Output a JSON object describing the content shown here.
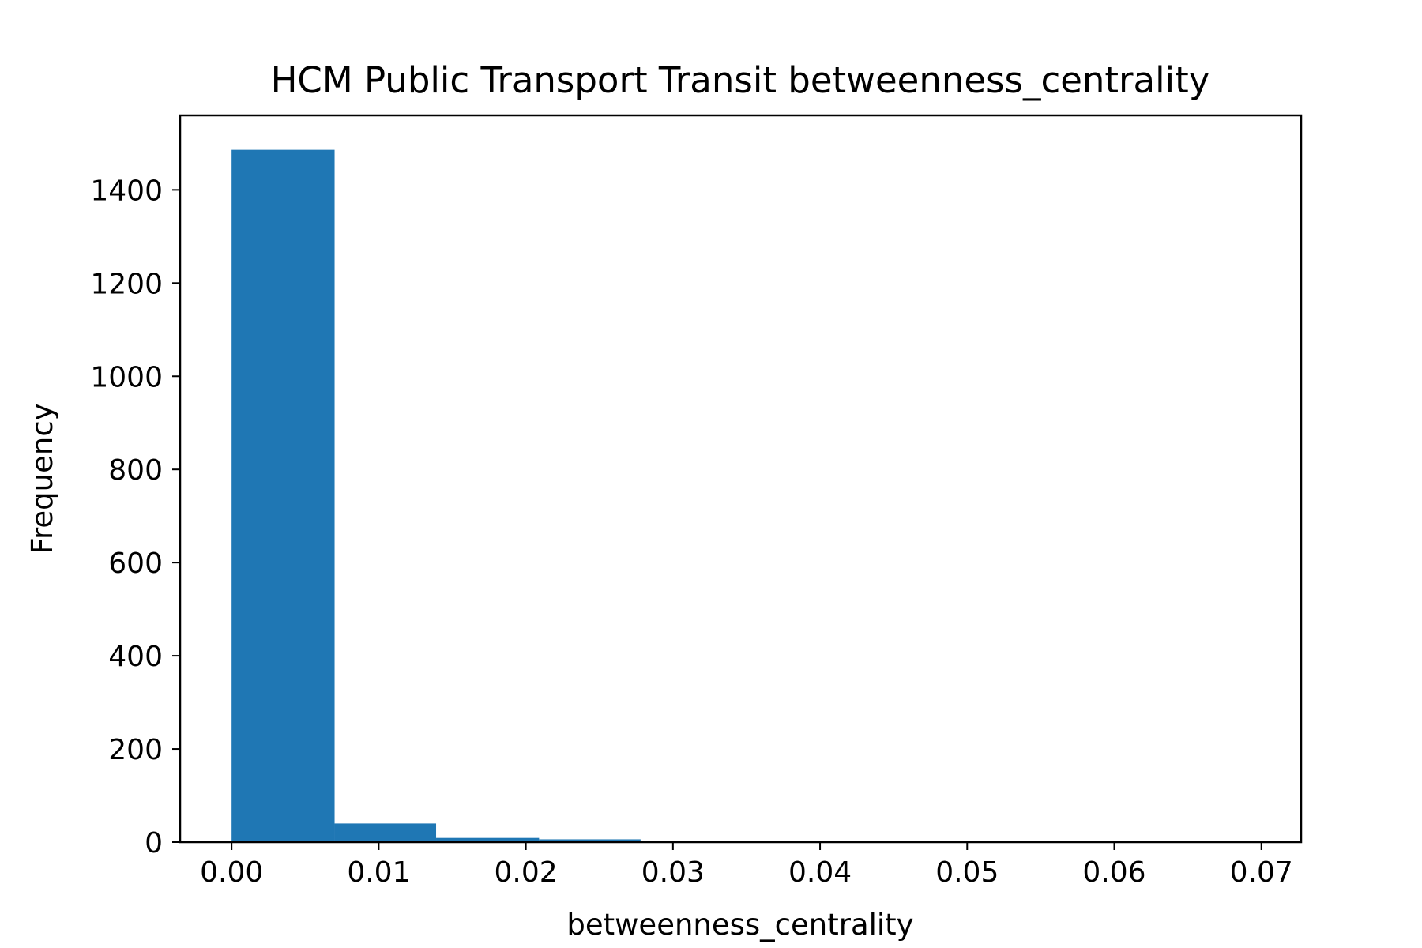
{
  "chart_data": {
    "type": "bar",
    "title": "HCM Public Transport Transit betweenness_centrality",
    "xlabel": "betweenness_centrality",
    "ylabel": "Frequency",
    "xlim": [
      -0.0035,
      0.0727
    ],
    "ylim": [
      0,
      1560
    ],
    "xticks": [
      0.0,
      0.01,
      0.02,
      0.03,
      0.04,
      0.05,
      0.06,
      0.07
    ],
    "xtick_labels": [
      "0.00",
      "0.01",
      "0.02",
      "0.03",
      "0.04",
      "0.05",
      "0.06",
      "0.07"
    ],
    "yticks": [
      0,
      200,
      400,
      600,
      800,
      1000,
      1200,
      1400
    ],
    "ytick_labels": [
      "0",
      "200",
      "400",
      "600",
      "800",
      "1000",
      "1200",
      "1400"
    ],
    "bins": [
      {
        "x0": 0.0,
        "x1": 0.007,
        "count": 1486
      },
      {
        "x0": 0.007,
        "x1": 0.0139,
        "count": 40
      },
      {
        "x0": 0.0139,
        "x1": 0.0209,
        "count": 9
      },
      {
        "x0": 0.0209,
        "x1": 0.0278,
        "count": 6
      },
      {
        "x0": 0.0278,
        "x1": 0.0348,
        "count": 1
      },
      {
        "x0": 0.0348,
        "x1": 0.0418,
        "count": 1
      },
      {
        "x0": 0.0418,
        "x1": 0.0487,
        "count": 0
      },
      {
        "x0": 0.0487,
        "x1": 0.0557,
        "count": 0
      },
      {
        "x0": 0.0557,
        "x1": 0.0626,
        "count": 0
      },
      {
        "x0": 0.0626,
        "x1": 0.0696,
        "count": 1
      }
    ],
    "bar_color": "#1f77b4",
    "grid": false,
    "legend": "none"
  }
}
